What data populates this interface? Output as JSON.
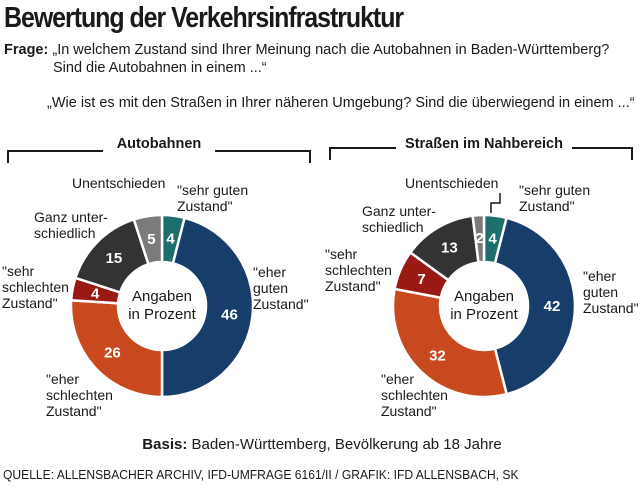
{
  "title": "Bewertung der Verkehrsinfrastruktur",
  "question": {
    "label": "Frage:",
    "line1": "„In welchem Zustand sind Ihrer Meinung nach die Autobahnen in Baden-Württemberg?",
    "line2": "Sind die Autobahnen in einem ...“",
    "line3": "„Wie ist es mit den Straßen in Ihrer näheren Umgebung? Sind die überwiegend in einem ...“"
  },
  "colors": {
    "sehr_gut": "#1d6f6e",
    "eher_gut": "#173e6a",
    "eher_schlecht": "#c8491d",
    "sehr_schlecht": "#991a14",
    "ganz_unterschiedlich": "#333333",
    "unentschieden": "#7b7b7b"
  },
  "chart_data": [
    {
      "type": "pie",
      "title": "Autobahnen",
      "center_label": [
        "Angaben",
        "in Prozent"
      ],
      "categories": [
        "\"sehr guten Zustand\"",
        "\"eher guten Zustand\"",
        "\"eher schlechten Zustand\"",
        "\"sehr schlechten Zustand\"",
        "Ganz unterschiedlich",
        "Unentschieden"
      ],
      "values": [
        4,
        46,
        26,
        4,
        15,
        5
      ],
      "ext_labels": [
        [
          "\"sehr guten",
          "Zustand\""
        ],
        [
          "\"eher",
          "guten",
          "Zustand\""
        ],
        [
          "\"eher",
          "schlechten",
          "Zustand\""
        ],
        [
          "\"sehr",
          "schlechten",
          "Zustand\""
        ],
        [
          "Ganz unter-",
          "schiedlich"
        ],
        [
          "Unentschieden"
        ]
      ]
    },
    {
      "type": "pie",
      "title": "Straßen im Nahbereich",
      "center_label": [
        "Angaben",
        "in Prozent"
      ],
      "categories": [
        "\"sehr guten Zustand\"",
        "\"eher guten Zustand\"",
        "\"eher schlechten Zustand\"",
        "\"sehr schlechten Zustand\"",
        "Ganz unterschiedlich",
        "Unentschieden"
      ],
      "values": [
        4,
        42,
        32,
        7,
        13,
        2
      ],
      "ext_labels": [
        [
          "\"sehr guten",
          "Zustand\""
        ],
        [
          "\"eher",
          "guten",
          "Zustand\""
        ],
        [
          "\"eher",
          "schlechten",
          "Zustand\""
        ],
        [
          "\"sehr",
          "schlechten",
          "Zustand\""
        ],
        [
          "Ganz unter-",
          "schiedlich"
        ],
        [
          "Unentschieden"
        ]
      ]
    }
  ],
  "basis": {
    "label": "Basis:",
    "text": "Baden-Württemberg, Bevölkerung ab 18 Jahre"
  },
  "source": "QUELLE: ALLENSBACHER ARCHIV, IFD-UMFRAGE 6161/II / GRAFIK: IFD ALLENSBACH, SK"
}
